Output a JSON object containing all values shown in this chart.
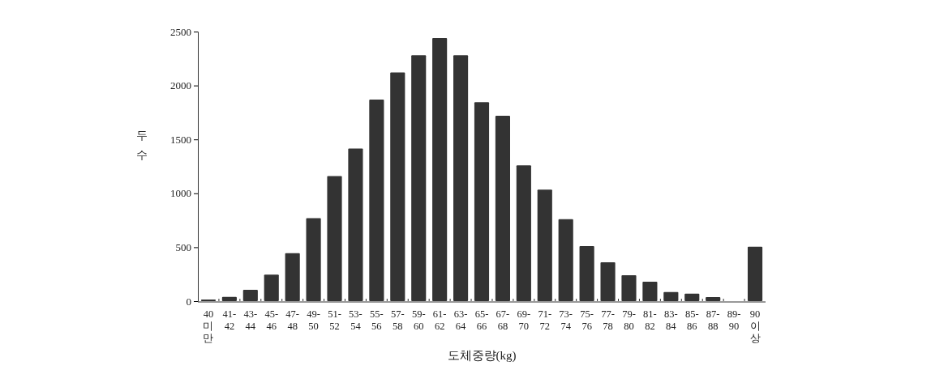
{
  "chart_data": {
    "type": "bar",
    "xlabel": "도체중량(kg)",
    "ylabel": "두수",
    "categories": [
      "40\n미\n만",
      "41-\n42",
      "43-\n44",
      "45-\n46",
      "47-\n48",
      "49-\n50",
      "51-\n52",
      "53-\n54",
      "55-\n56",
      "57-\n58",
      "59-\n60",
      "61-\n62",
      "63-\n64",
      "65-\n66",
      "67-\n68",
      "69-\n70",
      "71-\n72",
      "73-\n74",
      "75-\n76",
      "77-\n78",
      "79-\n80",
      "81-\n82",
      "83-\n84",
      "85-\n86",
      "87-\n88",
      "89-\n90",
      "90\n이\n상"
    ],
    "values": [
      15,
      40,
      105,
      245,
      445,
      770,
      1160,
      1415,
      1870,
      2120,
      2280,
      2440,
      2280,
      1845,
      1720,
      1260,
      1035,
      760,
      510,
      360,
      240,
      180,
      85,
      70,
      38,
      0,
      505
    ],
    "color": "#333333",
    "ylim": [
      0,
      2500
    ],
    "yticks": [
      0,
      500,
      1000,
      1500,
      2000,
      2500
    ],
    "grid": false
  }
}
